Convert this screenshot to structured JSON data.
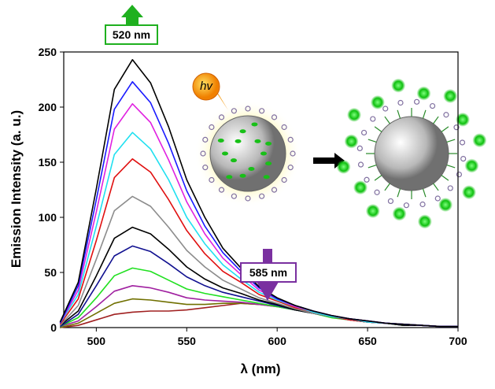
{
  "chart_data": {
    "type": "line",
    "x_label": "λ (nm)",
    "y_label": "Emission Intensity (a. u.)",
    "annotations": [
      "520 nm",
      "585 nm",
      "hv"
    ],
    "xlim": [
      482,
      700
    ],
    "ylim": [
      0,
      250
    ],
    "xticks": [
      500,
      550,
      600,
      650,
      700
    ],
    "yticks": [
      0,
      50,
      100,
      150,
      200,
      250
    ],
    "x": [
      480,
      490,
      500,
      510,
      520,
      530,
      540,
      550,
      560,
      570,
      580,
      590,
      600,
      610,
      620,
      630,
      640,
      650,
      660,
      670,
      680,
      690,
      700
    ],
    "series": [
      {
        "color": "#000000",
        "values": [
          5,
          41,
          126,
          216,
          243,
          222,
          182,
          134,
          100,
          72,
          54,
          37,
          27,
          20,
          15,
          11,
          8,
          6,
          4,
          3,
          2,
          1,
          1
        ]
      },
      {
        "color": "#1a1aff",
        "values": [
          4,
          38,
          116,
          198,
          223,
          204,
          167,
          124,
          92,
          68,
          51,
          36,
          26,
          20,
          15,
          11,
          8,
          6,
          4,
          3,
          2,
          1,
          1
        ]
      },
      {
        "color": "#e020e0",
        "values": [
          4,
          34,
          105,
          180,
          203,
          186,
          152,
          114,
          85,
          63,
          48,
          34,
          26,
          19,
          15,
          11,
          8,
          6,
          4,
          3,
          2,
          1,
          1
        ]
      },
      {
        "color": "#20e0f0",
        "values": [
          4,
          30,
          92,
          157,
          177,
          162,
          134,
          100,
          76,
          57,
          44,
          32,
          25,
          19,
          14,
          10,
          8,
          5,
          4,
          3,
          2,
          1,
          1
        ]
      },
      {
        "color": "#e01010",
        "values": [
          3,
          26,
          79,
          136,
          153,
          141,
          116,
          88,
          67,
          51,
          41,
          30,
          24,
          18,
          14,
          10,
          7,
          5,
          4,
          3,
          2,
          1,
          1
        ]
      },
      {
        "color": "#8c8c8c",
        "values": [
          2,
          20,
          62,
          106,
          119,
          110,
          91,
          70,
          55,
          43,
          35,
          27,
          22,
          17,
          13,
          10,
          7,
          5,
          4,
          3,
          2,
          1,
          1
        ]
      },
      {
        "color": "#000000",
        "values": [
          2,
          15,
          47,
          81,
          91,
          85,
          71,
          55,
          44,
          36,
          31,
          25,
          21,
          16,
          13,
          10,
          7,
          5,
          4,
          2,
          2,
          1,
          1
        ]
      },
      {
        "color": "#101090",
        "values": [
          1,
          12,
          38,
          65,
          74,
          69,
          58,
          46,
          38,
          32,
          28,
          24,
          20,
          16,
          13,
          10,
          7,
          5,
          4,
          3,
          2,
          1,
          1
        ]
      },
      {
        "color": "#20e020",
        "values": [
          1,
          9,
          27,
          47,
          54,
          51,
          43,
          35,
          31,
          28,
          25,
          22,
          19,
          16,
          13,
          9,
          7,
          5,
          4,
          2,
          2,
          1,
          1
        ]
      },
      {
        "color": "#a020a0",
        "values": [
          1,
          6,
          19,
          33,
          38,
          36,
          32,
          27,
          25,
          24,
          23,
          21,
          19,
          16,
          13,
          10,
          7,
          5,
          4,
          2,
          2,
          1,
          1
        ]
      },
      {
        "color": "#707000",
        "values": [
          0,
          4,
          13,
          22,
          26,
          25,
          23,
          21,
          21,
          22,
          22,
          21,
          19,
          16,
          13,
          10,
          7,
          5,
          4,
          2,
          2,
          1,
          1
        ]
      },
      {
        "color": "#a02020",
        "values": [
          0,
          2,
          7,
          12,
          14,
          15,
          15,
          16,
          18,
          20,
          22,
          21,
          20,
          17,
          14,
          10,
          8,
          6,
          4,
          3,
          2,
          1,
          1
        ]
      }
    ]
  }
}
